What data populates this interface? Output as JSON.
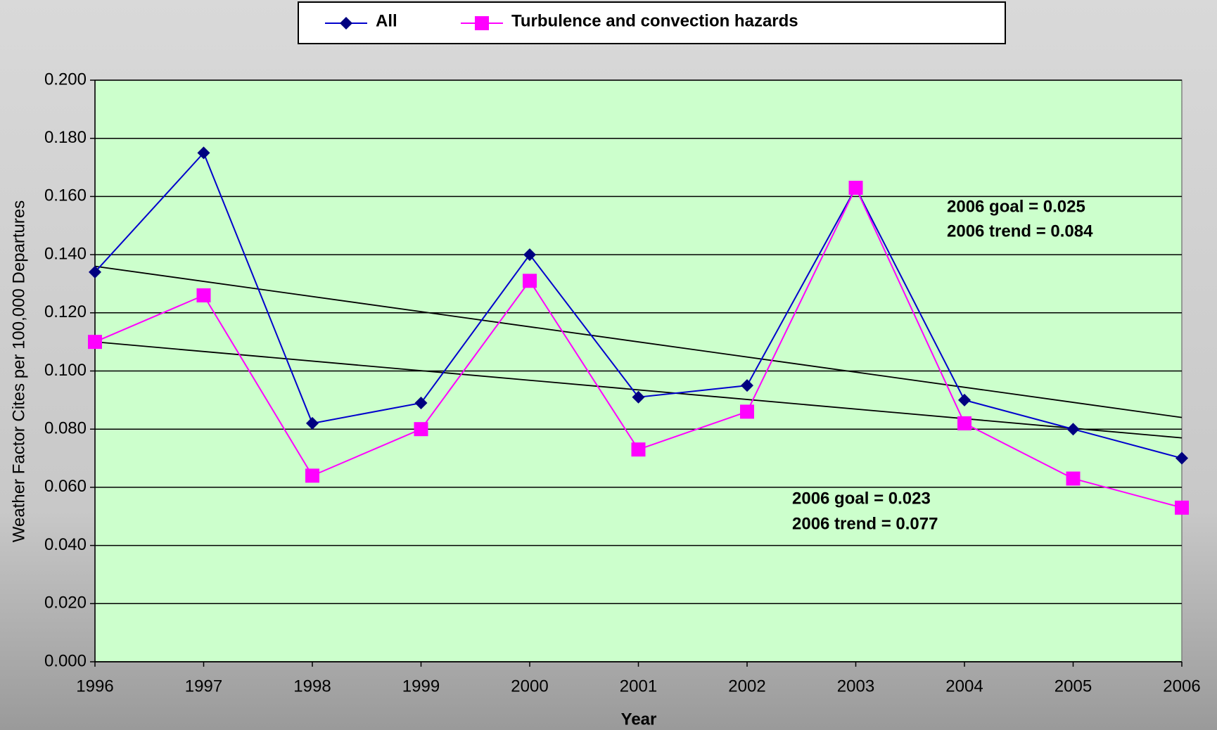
{
  "chart_data": {
    "type": "line",
    "x_label": "Year",
    "y_label": "Weather Factor Cites per 100,000 Departures",
    "categories": [
      "1996",
      "1997",
      "1998",
      "1999",
      "2000",
      "2001",
      "2002",
      "2003",
      "2004",
      "2005",
      "2006"
    ],
    "series": [
      {
        "name": "All",
        "color": "#0000cc",
        "marker": "diamond",
        "marker_color": "#000080",
        "values": [
          0.134,
          0.175,
          0.082,
          0.089,
          0.14,
          0.091,
          0.095,
          0.163,
          0.09,
          0.08,
          0.07
        ]
      },
      {
        "name": "Turbulence and convection hazards",
        "color": "#ff00ff",
        "marker": "square",
        "marker_color": "#ff00ff",
        "values": [
          0.11,
          0.126,
          0.064,
          0.08,
          0.131,
          0.073,
          0.086,
          0.163,
          0.082,
          0.063,
          0.053
        ]
      }
    ],
    "trendlines": [
      {
        "color": "#000000",
        "values": [
          0.136,
          0.084
        ]
      },
      {
        "color": "#000000",
        "values": [
          0.11,
          0.077
        ]
      }
    ],
    "annotations": [
      "2006 goal = 0.025",
      "2006 trend = 0.084",
      "2006 goal = 0.023",
      "2006 trend = 0.077"
    ],
    "ylim": [
      0,
      0.2
    ],
    "yticks": [
      {
        "value": 0,
        "label": "0.000"
      },
      {
        "value": 0.02,
        "label": "0.020"
      },
      {
        "value": 0.04,
        "label": "0.040"
      },
      {
        "value": 0.06,
        "label": "0.060"
      },
      {
        "value": 0.08,
        "label": "0.080"
      },
      {
        "value": 0.1,
        "label": "0.100"
      },
      {
        "value": 0.12,
        "label": "0.120"
      },
      {
        "value": 0.14,
        "label": "0.140"
      },
      {
        "value": 0.16,
        "label": "0.160"
      },
      {
        "value": 0.18,
        "label": "0.180"
      },
      {
        "value": 0.2,
        "label": "0.200"
      }
    ],
    "grid": true,
    "plot_background": "#ccffcc",
    "legend": "top"
  }
}
